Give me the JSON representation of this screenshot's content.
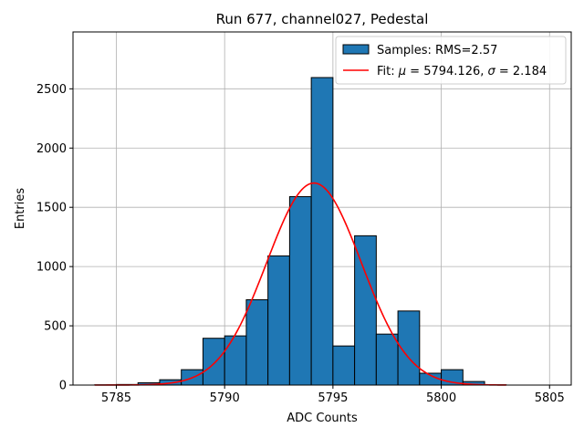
{
  "chart_data": {
    "type": "bar",
    "title": "Run 677, channel027, Pedestal",
    "xlabel": "ADC Counts",
    "ylabel": "Entries",
    "xlim": [
      5783.0,
      5806.0
    ],
    "ylim": [
      0,
      2980
    ],
    "grid": true,
    "xticks": [
      5785,
      5790,
      5795,
      5800,
      5805
    ],
    "yticks": [
      0,
      500,
      1000,
      1500,
      2000,
      2500
    ],
    "bin_width": 1,
    "bin_edges_start": 5784,
    "histogram": {
      "name": "Samples: RMS=2.57",
      "color": "#1f77b4",
      "bins": [
        {
          "x": 5784,
          "count": 2
        },
        {
          "x": 5785,
          "count": 5
        },
        {
          "x": 5786,
          "count": 20
        },
        {
          "x": 5787,
          "count": 45
        },
        {
          "x": 5788,
          "count": 130
        },
        {
          "x": 5789,
          "count": 395
        },
        {
          "x": 5790,
          "count": 415
        },
        {
          "x": 5791,
          "count": 720
        },
        {
          "x": 5792,
          "count": 1090
        },
        {
          "x": 5793,
          "count": 1590
        },
        {
          "x": 5794,
          "count": 2595
        },
        {
          "x": 5795,
          "count": 330
        },
        {
          "x": 5796,
          "count": 1260
        },
        {
          "x": 5797,
          "count": 430
        },
        {
          "x": 5798,
          "count": 625
        },
        {
          "x": 5799,
          "count": 100
        },
        {
          "x": 5800,
          "count": 130
        },
        {
          "x": 5801,
          "count": 30
        },
        {
          "x": 5802,
          "count": 2
        }
      ]
    },
    "fit": {
      "name_prefix": "Fit: ",
      "mu_symbol": "μ",
      "sigma_symbol": "σ",
      "mu": 5794.126,
      "sigma": 2.184,
      "amplitude": 1705,
      "x_range": [
        5784.0,
        5803.0
      ],
      "color": "#ff0000",
      "label_parts": [
        "Fit: ",
        "μ",
        " = 5794.126, ",
        "σ",
        " = 2.184"
      ]
    },
    "legend_position": "top-right"
  }
}
